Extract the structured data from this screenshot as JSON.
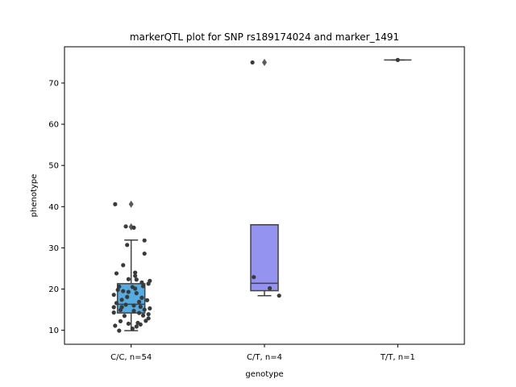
{
  "chart_data": {
    "type": "box",
    "title": "markerQTL plot for SNP rs189174024 and marker_1491",
    "xlabel": "genotype",
    "ylabel": "phenotype",
    "ylim": [
      6.6,
      78.8
    ],
    "yticks": [
      10,
      20,
      30,
      40,
      50,
      60,
      70
    ],
    "categories": [
      "C/C, n=54",
      "C/T, n=4",
      "T/T, n=1"
    ],
    "boxes": [
      {
        "category": "C/C, n=54",
        "color": "#56ace0",
        "q1": 14.2,
        "median": 16.3,
        "q3": 21.3,
        "whisker_low": 9.9,
        "whisker_high": 31.9,
        "outliers": [
          40.6,
          35.1
        ]
      },
      {
        "category": "C/T, n=4",
        "color": "#9593f0",
        "q1": 19.6,
        "median": 21.4,
        "q3": 35.6,
        "whisker_low": 18.4,
        "whisker_high": 35.6,
        "outliers": [
          75.0
        ]
      },
      {
        "category": "T/T, n=1",
        "color": "#9593f0",
        "q1": 75.6,
        "median": 75.6,
        "q3": 75.6,
        "whisker_low": 75.6,
        "whisker_high": 75.6,
        "outliers": []
      }
    ],
    "points": [
      {
        "group": 0,
        "x": -0.12,
        "y": 40.6
      },
      {
        "group": 0,
        "x": -0.04,
        "y": 35.2
      },
      {
        "group": 0,
        "x": 0.02,
        "y": 34.9
      },
      {
        "group": 0,
        "x": 0.1,
        "y": 31.8
      },
      {
        "group": 0,
        "x": -0.03,
        "y": 30.7
      },
      {
        "group": 0,
        "x": 0.1,
        "y": 28.6
      },
      {
        "group": 0,
        "x": -0.06,
        "y": 25.8
      },
      {
        "group": 0,
        "x": 0.03,
        "y": 24.0
      },
      {
        "group": 0,
        "x": -0.11,
        "y": 23.8
      },
      {
        "group": 0,
        "x": 0.03,
        "y": 23.2
      },
      {
        "group": 0,
        "x": -0.02,
        "y": 22.4
      },
      {
        "group": 0,
        "x": 0.04,
        "y": 22.3
      },
      {
        "group": 0,
        "x": 0.14,
        "y": 22.0
      },
      {
        "group": 0,
        "x": 0.08,
        "y": 21.6
      },
      {
        "group": 0,
        "x": 0.13,
        "y": 21.3
      },
      {
        "group": 0,
        "x": -0.09,
        "y": 20.6
      },
      {
        "group": 0,
        "x": 0.01,
        "y": 20.5
      },
      {
        "group": 0,
        "x": 0.09,
        "y": 20.7
      },
      {
        "group": 0,
        "x": 0.03,
        "y": 20.1
      },
      {
        "group": 0,
        "x": -0.1,
        "y": 19.8
      },
      {
        "group": 0,
        "x": -0.06,
        "y": 19.5
      },
      {
        "group": 0,
        "x": -0.02,
        "y": 19.3
      },
      {
        "group": 0,
        "x": 0.04,
        "y": 19.0
      },
      {
        "group": 0,
        "x": -0.13,
        "y": 18.6
      },
      {
        "group": 0,
        "x": -0.03,
        "y": 18.1
      },
      {
        "group": 0,
        "x": 0.08,
        "y": 17.9
      },
      {
        "group": 0,
        "x": -0.07,
        "y": 17.4
      },
      {
        "group": 0,
        "x": 0.12,
        "y": 17.3
      },
      {
        "group": 0,
        "x": 0.06,
        "y": 16.9
      },
      {
        "group": 0,
        "x": -0.11,
        "y": 16.6
      },
      {
        "group": 0,
        "x": -0.04,
        "y": 16.2
      },
      {
        "group": 0,
        "x": 0.02,
        "y": 16.0
      },
      {
        "group": 0,
        "x": -0.07,
        "y": 15.6
      },
      {
        "group": 0,
        "x": 0.07,
        "y": 15.7
      },
      {
        "group": 0,
        "x": -0.13,
        "y": 15.6
      },
      {
        "group": 0,
        "x": 0.14,
        "y": 15.3
      },
      {
        "group": 0,
        "x": 0.1,
        "y": 15.0
      },
      {
        "group": 0,
        "x": -0.08,
        "y": 14.9
      },
      {
        "group": 0,
        "x": 0.02,
        "y": 14.7
      },
      {
        "group": 0,
        "x": -0.13,
        "y": 14.3
      },
      {
        "group": 0,
        "x": 0.06,
        "y": 14.2
      },
      {
        "group": 0,
        "x": 0.13,
        "y": 13.9
      },
      {
        "group": 0,
        "x": -0.05,
        "y": 13.5
      },
      {
        "group": 0,
        "x": 0.09,
        "y": 13.6
      },
      {
        "group": 0,
        "x": 0.13,
        "y": 12.9
      },
      {
        "group": 0,
        "x": -0.08,
        "y": 12.2
      },
      {
        "group": 0,
        "x": 0.11,
        "y": 12.3
      },
      {
        "group": 0,
        "x": 0.05,
        "y": 11.8
      },
      {
        "group": 0,
        "x": -0.02,
        "y": 11.6
      },
      {
        "group": 0,
        "x": 0.07,
        "y": 11.4
      },
      {
        "group": 0,
        "x": -0.12,
        "y": 11.1
      },
      {
        "group": 0,
        "x": 0.04,
        "y": 10.9
      },
      {
        "group": 0,
        "x": -0.09,
        "y": 9.9
      },
      {
        "group": 0,
        "x": 0.01,
        "y": 10.4
      },
      {
        "group": 1,
        "x": -0.09,
        "y": 75.0
      },
      {
        "group": 1,
        "x": -0.08,
        "y": 22.9
      },
      {
        "group": 1,
        "x": 0.04,
        "y": 20.2
      },
      {
        "group": 1,
        "x": 0.11,
        "y": 18.4
      },
      {
        "group": 2,
        "x": 0.0,
        "y": 75.6
      }
    ],
    "colors": {
      "point": "#3a3a3a",
      "box_edge": "#424242",
      "outlier": "#5a5a5a"
    }
  }
}
